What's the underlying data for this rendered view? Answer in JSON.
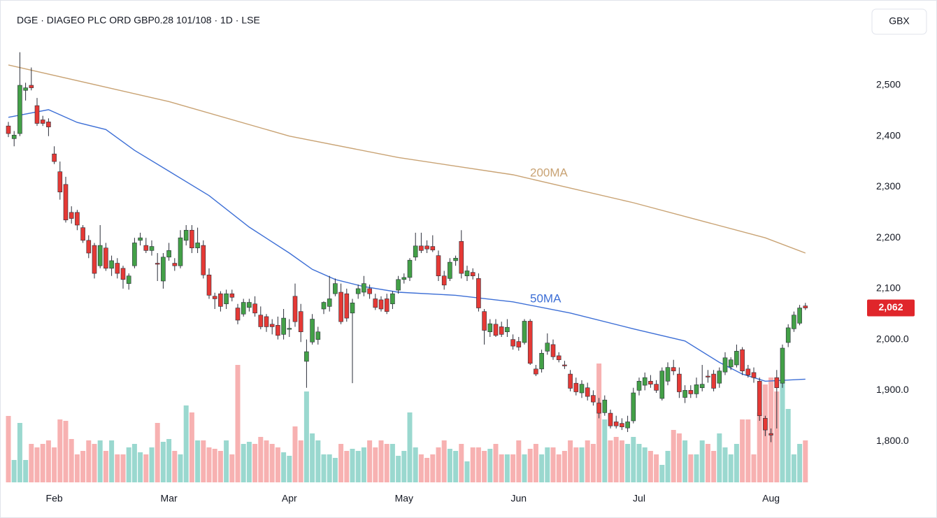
{
  "chart_data": {
    "type": "candlestick",
    "title": "DGE · DIAGEO PLC ORD GBP0.28 101/108 · 1D · LSE",
    "currency": "GBX",
    "last_price_label": "2,062",
    "up_color": "#43a047",
    "down_color": "#e53935",
    "volume_up_color": "#8fd4ca",
    "volume_down_color": "#f6a8a8",
    "ylim": [
      1719,
      2654
    ],
    "volume_lim": [
      0,
      680
    ],
    "yticks": [
      {
        "value": 2500,
        "label": "2,500"
      },
      {
        "value": 2400,
        "label": "2,400"
      },
      {
        "value": 2300,
        "label": "2,300"
      },
      {
        "value": 2200,
        "label": "2,200"
      },
      {
        "value": 2100,
        "label": "2,100"
      },
      {
        "value": 2000,
        "label": "2,000.0"
      },
      {
        "value": 1900,
        "label": "1,900.0"
      },
      {
        "value": 1800,
        "label": "1,800.0"
      }
    ],
    "categories": [
      null,
      null,
      null,
      null,
      null,
      null,
      null,
      null,
      "Feb",
      null,
      null,
      null,
      null,
      null,
      null,
      null,
      null,
      null,
      null,
      null,
      null,
      null,
      null,
      null,
      null,
      null,
      null,
      null,
      "Mar",
      null,
      null,
      null,
      null,
      null,
      null,
      null,
      null,
      null,
      null,
      null,
      null,
      null,
      null,
      null,
      null,
      null,
      null,
      null,
      null,
      "Apr",
      null,
      null,
      null,
      null,
      null,
      null,
      null,
      null,
      null,
      null,
      null,
      null,
      null,
      null,
      null,
      null,
      null,
      null,
      null,
      "May",
      null,
      null,
      null,
      null,
      null,
      null,
      null,
      null,
      null,
      null,
      null,
      null,
      null,
      null,
      null,
      null,
      null,
      null,
      null,
      "Jun",
      null,
      null,
      null,
      null,
      null,
      null,
      null,
      null,
      null,
      null,
      null,
      null,
      null,
      null,
      null,
      null,
      null,
      null,
      null,
      null,
      "Jul",
      null,
      null,
      null,
      null,
      null,
      null,
      null,
      null,
      null,
      null,
      null,
      null,
      null,
      null,
      null,
      null,
      null,
      null,
      null,
      null,
      null,
      null,
      "Aug",
      null,
      null,
      null,
      null,
      null,
      null
    ],
    "open": [
      2420,
      2395,
      2405,
      2490,
      2500,
      2460,
      2432,
      2428,
      2365,
      2330,
      2305,
      2250,
      2250,
      2220,
      2195,
      2185,
      2145,
      2180,
      2140,
      2150,
      2140,
      2110,
      2145,
      2195,
      2185,
      2175,
      2150,
      2115,
      2162,
      2150,
      2145,
      2195,
      2215,
      2180,
      2185,
      2127,
      2085,
      2090,
      2070,
      2090,
      2062,
      2050,
      2063,
      2070,
      2048,
      2045,
      2030,
      2028,
      2010,
      2020,
      2085,
      2055,
      1957,
      1995,
      2000,
      2060,
      2065,
      2090,
      2093,
      2090,
      2052,
      2090,
      2093,
      2100,
      2080,
      2078,
      2080,
      2070,
      2097,
      2118,
      2122,
      2162,
      2184,
      2184,
      2183,
      2165,
      2125,
      2120,
      2155,
      2193,
      2125,
      2132,
      2120,
      2055,
      2015,
      2030,
      2025,
      2015,
      2000,
      1996,
      1994,
      2036,
      1942,
      1942,
      1977,
      1990,
      1968,
      1950,
      1932,
      1914,
      1895,
      1905,
      1890,
      1875,
      1856,
      1855,
      1838,
      1835,
      1826,
      1840,
      1900,
      1910,
      1918,
      1912,
      1884,
      1918,
      1945,
      1932,
      1886,
      1900,
      1893,
      1905,
      1928,
      1932,
      1914,
      1936,
      1946,
      1950,
      1980,
      1942,
      1935,
      1918,
      1845,
      1815,
      1925,
      1914,
      1994,
      2021,
      2032,
      2066
    ],
    "high": [
      2428,
      2410,
      2565,
      2505,
      2535,
      2475,
      2440,
      2435,
      2380,
      2350,
      2320,
      2262,
      2255,
      2225,
      2205,
      2190,
      2225,
      2190,
      2165,
      2160,
      2145,
      2130,
      2200,
      2210,
      2200,
      2195,
      2170,
      2170,
      2190,
      2160,
      2215,
      2225,
      2225,
      2220,
      2195,
      2140,
      2092,
      2095,
      2098,
      2098,
      2070,
      2080,
      2080,
      2085,
      2065,
      2050,
      2040,
      2045,
      2060,
      2040,
      2110,
      2070,
      2000,
      2050,
      2025,
      2075,
      2125,
      2120,
      2110,
      2100,
      2080,
      2108,
      2125,
      2108,
      2090,
      2085,
      2090,
      2095,
      2125,
      2130,
      2160,
      2210,
      2210,
      2195,
      2205,
      2175,
      2135,
      2160,
      2165,
      2215,
      2145,
      2140,
      2130,
      2060,
      2040,
      2040,
      2035,
      2040,
      2010,
      2005,
      2040,
      2040,
      1950,
      1980,
      2012,
      2000,
      1975,
      1958,
      1940,
      1925,
      1920,
      1915,
      1900,
      1885,
      1890,
      1862,
      1850,
      1845,
      1850,
      1905,
      1925,
      1935,
      1930,
      1920,
      1945,
      1955,
      1960,
      1945,
      1910,
      1910,
      1925,
      1950,
      1940,
      1940,
      1945,
      1975,
      1965,
      1990,
      1985,
      1950,
      1945,
      1925,
      1850,
      1825,
      1940,
      1990,
      2030,
      2055,
      2068,
      2072
    ],
    "low": [
      2398,
      2380,
      2400,
      2470,
      2490,
      2420,
      2420,
      2400,
      2345,
      2275,
      2230,
      2228,
      2215,
      2190,
      2160,
      2120,
      2140,
      2135,
      2125,
      2120,
      2100,
      2098,
      2140,
      2185,
      2170,
      2165,
      2115,
      2100,
      2155,
      2135,
      2140,
      2185,
      2170,
      2170,
      2120,
      2080,
      2060,
      2055,
      2060,
      2075,
      2030,
      2045,
      2055,
      2045,
      2020,
      2015,
      2010,
      2000,
      2000,
      2005,
      2025,
      1995,
      1905,
      1990,
      1990,
      2050,
      2055,
      2085,
      2030,
      2035,
      1914,
      2080,
      2085,
      2080,
      2058,
      2055,
      2050,
      2060,
      2090,
      2110,
      2115,
      2155,
      2170,
      2170,
      2172,
      2115,
      2098,
      2115,
      2145,
      2120,
      2115,
      2118,
      2055,
      1990,
      2005,
      2005,
      2005,
      2005,
      1980,
      1978,
      1990,
      1950,
      1928,
      1935,
      1970,
      1960,
      1955,
      1942,
      1898,
      1890,
      1885,
      1880,
      1870,
      1845,
      1850,
      1825,
      1825,
      1822,
      1818,
      1835,
      1890,
      1900,
      1905,
      1895,
      1880,
      1910,
      1930,
      1885,
      1875,
      1885,
      1885,
      1898,
      1915,
      1898,
      1905,
      1930,
      1940,
      1945,
      1930,
      1925,
      1915,
      1840,
      1810,
      1798,
      1825,
      1905,
      1985,
      2015,
      2028,
      2058
    ],
    "close": [
      2405,
      2402,
      2500,
      2495,
      2495,
      2425,
      2425,
      2418,
      2350,
      2290,
      2235,
      2238,
      2225,
      2195,
      2170,
      2130,
      2185,
      2140,
      2155,
      2130,
      2118,
      2125,
      2190,
      2200,
      2175,
      2183,
      2148,
      2162,
      2175,
      2145,
      2200,
      2215,
      2180,
      2190,
      2127,
      2087,
      2080,
      2065,
      2090,
      2083,
      2038,
      2073,
      2073,
      2052,
      2025,
      2025,
      2025,
      2008,
      2042,
      2022,
      2035,
      2015,
      1976,
      2040,
      2015,
      2073,
      2080,
      2110,
      2035,
      2042,
      2072,
      2100,
      2110,
      2090,
      2063,
      2060,
      2055,
      2090,
      2118,
      2122,
      2156,
      2184,
      2175,
      2178,
      2176,
      2125,
      2107,
      2152,
      2160,
      2130,
      2135,
      2125,
      2062,
      2018,
      2031,
      2008,
      2010,
      2024,
      1987,
      1985,
      2036,
      1953,
      1932,
      1973,
      1993,
      1966,
      1960,
      1948,
      1904,
      1897,
      1912,
      1888,
      1877,
      1855,
      1881,
      1830,
      1830,
      1828,
      1838,
      1895,
      1918,
      1925,
      1912,
      1900,
      1938,
      1945,
      1938,
      1897,
      1900,
      1893,
      1911,
      1912,
      1926,
      1904,
      1938,
      1964,
      1960,
      1977,
      1938,
      1930,
      1925,
      1850,
      1822,
      1812,
      1905,
      1983,
      2023,
      2048,
      2062,
      2062
    ],
    "volume": [
      95,
      32,
      85,
      32,
      55,
      50,
      55,
      60,
      50,
      90,
      88,
      62,
      40,
      45,
      60,
      55,
      60,
      45,
      60,
      40,
      40,
      50,
      55,
      43,
      40,
      50,
      85,
      58,
      62,
      45,
      40,
      110,
      100,
      60,
      60,
      50,
      48,
      45,
      60,
      40,
      168,
      55,
      58,
      55,
      65,
      60,
      55,
      50,
      43,
      38,
      80,
      60,
      130,
      70,
      60,
      40,
      40,
      35,
      55,
      45,
      48,
      45,
      50,
      60,
      50,
      60,
      55,
      55,
      38,
      45,
      100,
      50,
      40,
      35,
      40,
      50,
      60,
      48,
      45,
      55,
      30,
      50,
      50,
      45,
      48,
      55,
      40,
      40,
      40,
      60,
      40,
      48,
      55,
      40,
      50,
      50,
      40,
      45,
      60,
      50,
      50,
      60,
      55,
      170,
      90,
      60,
      65,
      60,
      55,
      65,
      55,
      50,
      45,
      40,
      25,
      45,
      75,
      70,
      60,
      40,
      40,
      60,
      55,
      45,
      70,
      50,
      40,
      55,
      90,
      90,
      40,
      100,
      140,
      150,
      130,
      145,
      105,
      40,
      55,
      60
    ],
    "series": [
      {
        "name": "50MA",
        "color": "#3d6fd6",
        "x": [
          0,
          7,
          12,
          17,
          22,
          28,
          35,
          42,
          49,
          53,
          57,
          62,
          68,
          78,
          88,
          98,
          109,
          118,
          124,
          128,
          132,
          139
        ],
        "values": [
          2437,
          2452,
          2427,
          2413,
          2372,
          2331,
          2283,
          2221,
          2170,
          2138,
          2118,
          2104,
          2093,
          2087,
          2074,
          2052,
          2021,
          1997,
          1955,
          1932,
          1918,
          1922
        ]
      },
      {
        "name": "200MA",
        "color": "#c9a374",
        "x": [
          0,
          28,
          49,
          68,
          88,
          109,
          132,
          139
        ],
        "values": [
          2540,
          2468,
          2400,
          2358,
          2324,
          2269,
          2200,
          2170
        ]
      }
    ]
  }
}
